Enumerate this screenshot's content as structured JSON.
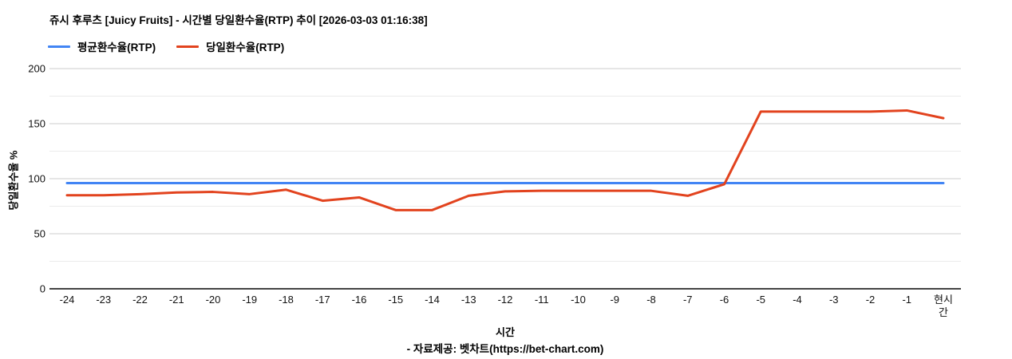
{
  "title": "쥬시 후루츠 [Juicy Fruits] - 시간별 당일환수율(RTP) 추이 [2026-03-03 01:16:38]",
  "legend": {
    "avg_label": "평균환수율(RTP)",
    "daily_label": "당일환수율(RTP)"
  },
  "y_axis": {
    "title": "당일환수율 %"
  },
  "x_axis": {
    "title": "시간"
  },
  "footer": "- 자료제공: 벳차트(https://bet-chart.com)",
  "colors": {
    "avg": "#4285f4",
    "daily": "#e2431e",
    "grid_major": "#cccccc",
    "grid_minor": "#ebebeb",
    "axis_line": "#444444"
  },
  "chart_data": {
    "type": "line",
    "title": "쥬시 후루츠 [Juicy Fruits] - 시간별 당일환수율(RTP) 추이 [2026-03-03 01:16:38]",
    "xlabel": "시간",
    "ylabel": "당일환수율 %",
    "ylim": [
      0,
      200
    ],
    "y_ticks": [
      0,
      50,
      100,
      150,
      200
    ],
    "y_minor_gridlines": [
      25,
      75,
      125,
      175
    ],
    "grid": true,
    "legend_position": "top",
    "categories": [
      "-24",
      "-23",
      "-22",
      "-21",
      "-20",
      "-19",
      "-18",
      "-17",
      "-16",
      "-15",
      "-14",
      "-13",
      "-12",
      "-11",
      "-10",
      "-9",
      "-8",
      "-7",
      "-6",
      "-5",
      "-4",
      "-3",
      "-2",
      "-1",
      "현시간"
    ],
    "series": [
      {
        "name": "평균환수율(RTP)",
        "color": "#4285f4",
        "values": [
          96,
          96,
          96,
          96,
          96,
          96,
          96,
          96,
          96,
          96,
          96,
          96,
          96,
          96,
          96,
          96,
          96,
          96,
          96,
          96,
          96,
          96,
          96,
          96,
          96
        ]
      },
      {
        "name": "당일환수율(RTP)",
        "color": "#e2431e",
        "values": [
          85,
          85,
          86,
          87.5,
          88,
          86,
          90,
          80,
          83,
          71.5,
          71.5,
          84.5,
          88.5,
          89,
          89,
          89,
          89,
          84.5,
          95,
          161,
          161,
          161,
          161,
          162,
          155
        ]
      }
    ]
  }
}
